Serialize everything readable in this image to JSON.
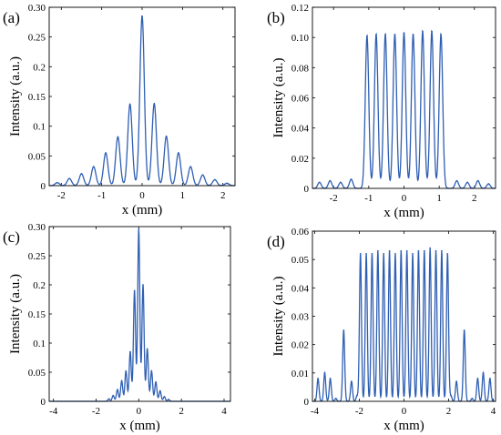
{
  "chart_data": [
    {
      "panel_label": "(a)",
      "type": "line",
      "xlabel": "x (mm)",
      "ylabel": "Intensity (a.u.)",
      "xlim": [
        -2.3,
        2.3
      ],
      "ylim": [
        0,
        0.3
      ],
      "xticks": [
        -2,
        -1,
        0,
        1,
        2
      ],
      "yticks": [
        0,
        0.05,
        0.1,
        0.15,
        0.2,
        0.25,
        0.3
      ],
      "ytick_labels": [
        "0",
        "0.05",
        "0.1",
        "0.15",
        "0.2",
        "0.25",
        "0.30"
      ],
      "color": "#2f5fb3",
      "peak_width": 0.055,
      "peaks": {
        "x": [
          -2.1,
          -1.8,
          -1.5,
          -1.2,
          -0.9,
          -0.6,
          -0.3,
          0.0,
          0.3,
          0.6,
          0.9,
          1.2,
          1.5,
          1.8,
          2.1
        ],
        "y": [
          0.005,
          0.012,
          0.02,
          0.032,
          0.055,
          0.082,
          0.137,
          0.285,
          0.138,
          0.083,
          0.055,
          0.032,
          0.018,
          0.01,
          0.004
        ]
      }
    },
    {
      "panel_label": "(b)",
      "type": "line",
      "xlabel": "x (mm)",
      "ylabel": "Intensity (a.u.)",
      "xlim": [
        -2.6,
        2.6
      ],
      "ylim": [
        0,
        0.12
      ],
      "xticks": [
        -2,
        -1,
        0,
        1,
        2
      ],
      "yticks": [
        0,
        0.02,
        0.04,
        0.06,
        0.08,
        0.1,
        0.12
      ],
      "ytick_labels": [
        "0",
        "0.02",
        "0.04",
        "0.06",
        "0.08",
        "0.10",
        "0.12"
      ],
      "color": "#2f5fb3",
      "peak_width": 0.05,
      "peaks": {
        "x": [
          -2.4,
          -2.1,
          -1.8,
          -1.5,
          -1.05,
          -0.79,
          -0.53,
          -0.26,
          0.0,
          0.26,
          0.53,
          0.79,
          1.05,
          1.5,
          1.8,
          2.1,
          2.4
        ],
        "y": [
          0.004,
          0.005,
          0.004,
          0.006,
          0.101,
          0.102,
          0.102,
          0.102,
          0.103,
          0.102,
          0.104,
          0.104,
          0.102,
          0.005,
          0.004,
          0.005,
          0.003
        ]
      }
    },
    {
      "panel_label": "(c)",
      "type": "line",
      "xlabel": "x (mm)",
      "ylabel": "Intensity (a.u.)",
      "xlim": [
        -4.2,
        4.3
      ],
      "ylim": [
        0,
        0.3
      ],
      "xticks": [
        -4,
        -2,
        0,
        2,
        4
      ],
      "yticks": [
        0,
        0.05,
        0.1,
        0.15,
        0.2,
        0.25,
        0.3
      ],
      "ytick_labels": [
        "0",
        "0.05",
        "0.1",
        "0.15",
        "0.2",
        "0.25",
        "0.30"
      ],
      "color": "#2f5fb3",
      "peak_width": 0.05,
      "peaks": {
        "x": [
          -1.4,
          -1.2,
          -1.0,
          -0.8,
          -0.6,
          -0.4,
          -0.2,
          0.0,
          0.2,
          0.4,
          0.6,
          0.8,
          1.0,
          1.2,
          1.4
        ],
        "y": [
          0.004,
          0.01,
          0.02,
          0.035,
          0.052,
          0.085,
          0.19,
          0.295,
          0.2,
          0.09,
          0.052,
          0.033,
          0.018,
          0.008,
          0.003
        ]
      }
    },
    {
      "panel_label": "(d)",
      "type": "line",
      "xlabel": "x (mm)",
      "ylabel": "Intensity (a.u.)",
      "xlim": [
        -4.1,
        4.1
      ],
      "ylim": [
        0,
        0.06
      ],
      "xticks": [
        -4,
        -2,
        0,
        2,
        4
      ],
      "yticks": [
        0,
        0.01,
        0.02,
        0.03,
        0.04,
        0.05,
        0.06
      ],
      "ytick_labels": [
        "0",
        "0.01",
        "0.02",
        "0.03",
        "0.04",
        "0.05",
        "0.06"
      ],
      "color": "#2f5fb3",
      "peak_width": 0.045,
      "peaks": {
        "x": [
          -3.85,
          -3.55,
          -3.3,
          -3.05,
          -2.7,
          -2.35,
          -2.1,
          -1.95,
          -1.69,
          -1.43,
          -1.17,
          -0.91,
          -0.65,
          -0.39,
          -0.13,
          0.13,
          0.39,
          0.65,
          0.91,
          1.17,
          1.43,
          1.69,
          1.95,
          2.1,
          2.35,
          2.7,
          3.05,
          3.3,
          3.55,
          3.85
        ],
        "y": [
          0.008,
          0.01,
          0.008,
          0.001,
          0.025,
          0.007,
          0.002,
          0.052,
          0.052,
          0.052,
          0.053,
          0.052,
          0.053,
          0.052,
          0.053,
          0.053,
          0.052,
          0.053,
          0.053,
          0.054,
          0.053,
          0.053,
          0.052,
          0.002,
          0.007,
          0.025,
          0.001,
          0.008,
          0.01,
          0.008
        ]
      }
    }
  ]
}
